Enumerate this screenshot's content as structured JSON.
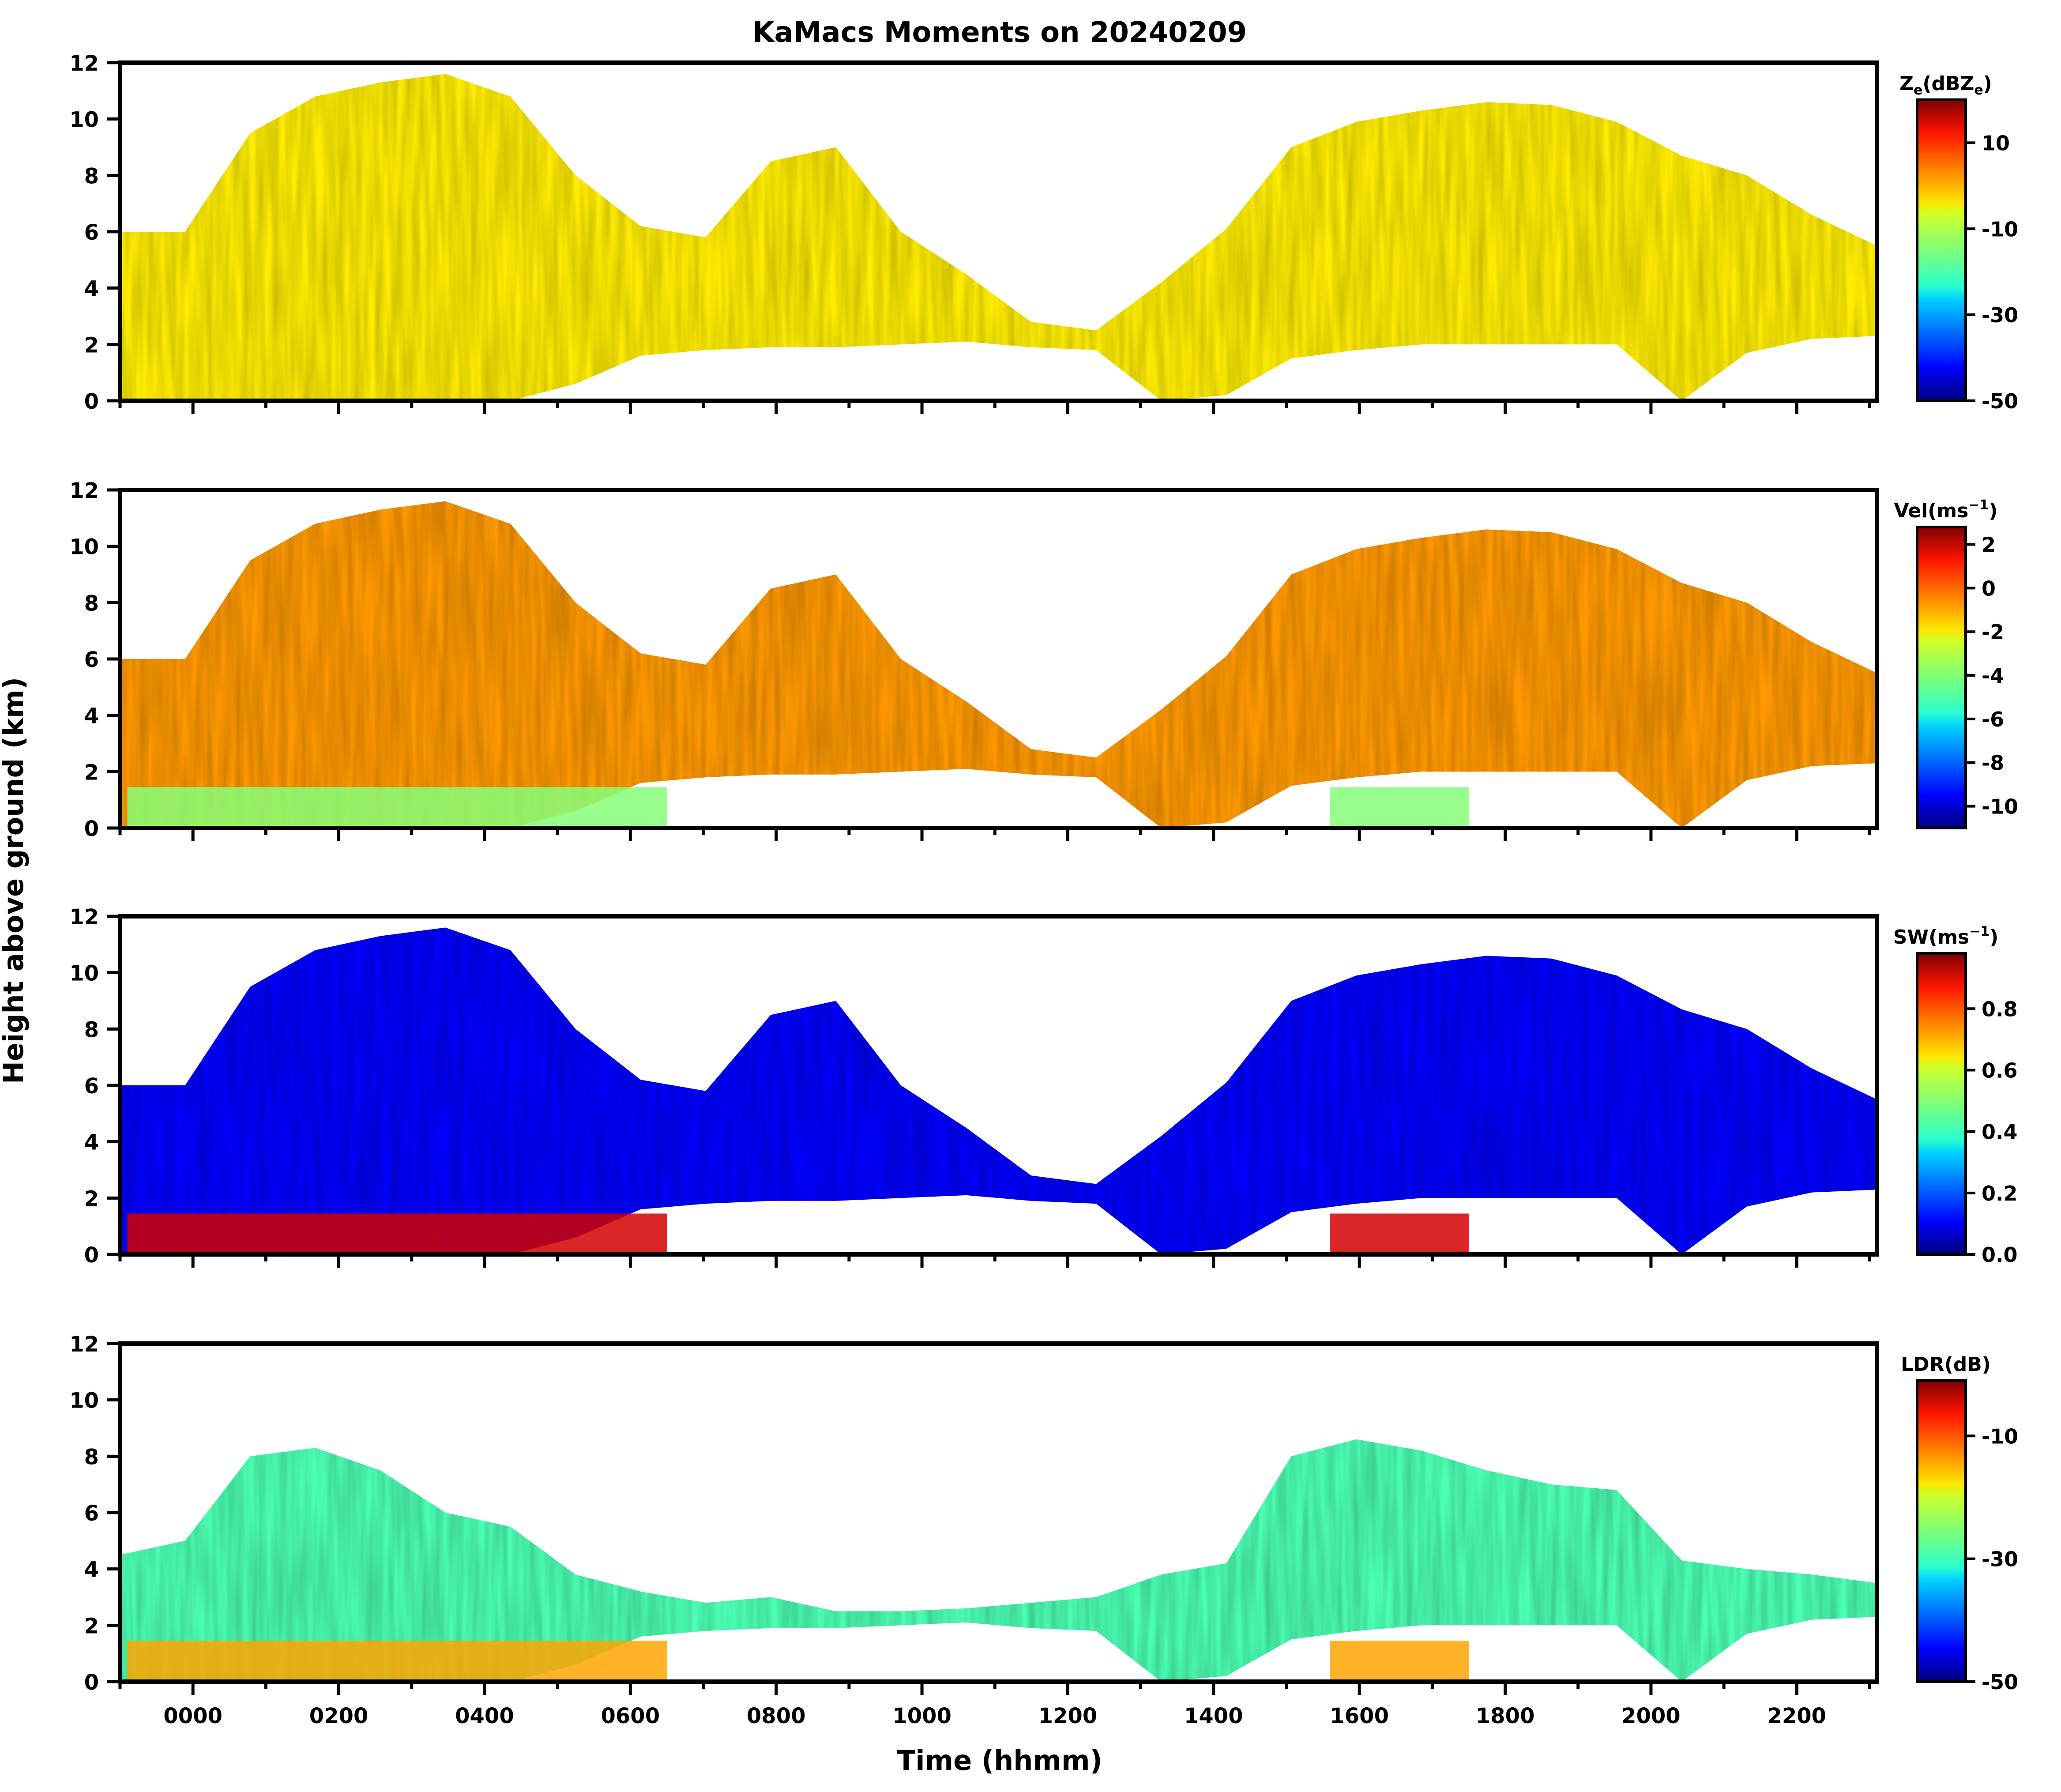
{
  "chart_data": {
    "type": "heatmap",
    "title": "KaMacs Moments on 20240209",
    "xlabel": "Time (hhmm)",
    "ylabel": "Height above ground (km)",
    "x_ticks": [
      "0000",
      "0200",
      "0400",
      "0600",
      "0800",
      "1000",
      "1200",
      "1400",
      "1600",
      "1800",
      "2000",
      "2200"
    ],
    "x_tick_hours": [
      0,
      2,
      4,
      6,
      8,
      10,
      12,
      14,
      16,
      18,
      20,
      22
    ],
    "xlim_hours": [
      -1.0,
      23.1
    ],
    "y_ticks": [
      "0",
      "2",
      "4",
      "6",
      "8",
      "10",
      "12"
    ],
    "ylim": [
      0,
      12
    ],
    "panels": [
      {
        "name": "reflectivity",
        "colorbar_label": "Ze(dBZe)",
        "label_main": "Z",
        "label_sub": "e",
        "label_mid": "(dBZ",
        "label_sub2": "e",
        "label_end": ")",
        "colorbar_ticks": [
          "10",
          "-10",
          "-30",
          "-50"
        ],
        "colorbar_values": [
          10,
          -10,
          -30,
          -50
        ],
        "vmin": -50,
        "vmax": 20,
        "dominant_value": -5,
        "cloud": "deep",
        "melt_band": "",
        "echo_top_km": [
          6.0,
          6.0,
          9.5,
          10.8,
          11.3,
          11.6,
          10.8,
          8.0,
          6.2,
          5.8,
          8.5,
          9.0,
          6.0,
          4.5,
          2.8,
          2.5,
          4.2,
          6.1,
          9.0,
          9.9,
          10.3,
          10.6,
          10.5,
          9.9,
          8.7,
          8.0,
          6.6,
          5.5
        ],
        "echo_base_km": [
          0.0,
          0.0,
          0.0,
          0.0,
          0.0,
          0.0,
          0.0,
          0.6,
          1.6,
          1.8,
          1.9,
          1.9,
          2.0,
          2.1,
          1.9,
          1.8,
          0.0,
          0.2,
          1.5,
          1.8,
          2.0,
          2.0,
          2.0,
          2.0,
          0.0,
          1.7,
          2.2,
          2.3
        ]
      },
      {
        "name": "velocity",
        "colorbar_label": "Vel(ms-1)",
        "label_main": "Vel(ms",
        "label_sub": "",
        "label_mid": "",
        "label_sup": "−1",
        "label_end": ")",
        "colorbar_ticks": [
          "2",
          "0",
          "-2",
          "-4",
          "-6",
          "-8",
          "-10"
        ],
        "colorbar_values": [
          2,
          0,
          -2,
          -4,
          -6,
          -8,
          -10
        ],
        "vmin": -11,
        "vmax": 2.8,
        "dominant_value": -1.0,
        "cloud": "deep",
        "melt_band": "-4",
        "echo_top_km": [
          6.0,
          6.0,
          9.5,
          10.8,
          11.3,
          11.6,
          10.8,
          8.0,
          6.2,
          5.8,
          8.5,
          9.0,
          6.0,
          4.5,
          2.8,
          2.5,
          4.2,
          6.1,
          9.0,
          9.9,
          10.3,
          10.6,
          10.5,
          9.9,
          8.7,
          8.0,
          6.6,
          5.5
        ],
        "echo_base_km": [
          0.0,
          0.0,
          0.0,
          0.0,
          0.0,
          0.0,
          0.0,
          0.6,
          1.6,
          1.8,
          1.9,
          1.9,
          2.0,
          2.1,
          1.9,
          1.8,
          0.0,
          0.2,
          1.5,
          1.8,
          2.0,
          2.0,
          2.0,
          2.0,
          0.0,
          1.7,
          2.2,
          2.3
        ]
      },
      {
        "name": "spectrum-width",
        "colorbar_label": "SW(ms-1)",
        "label_main": "SW(ms",
        "label_sub": "",
        "label_mid": "",
        "label_sup": "−1",
        "label_end": ")",
        "colorbar_ticks": [
          "0.8",
          "0.6",
          "0.4",
          "0.2",
          "0.0"
        ],
        "colorbar_values": [
          0.8,
          0.6,
          0.4,
          0.2,
          0.0
        ],
        "vmin": 0.0,
        "vmax": 0.98,
        "dominant_value": 0.12,
        "cloud": "deep",
        "melt_band": "0.9",
        "echo_top_km": [
          6.0,
          6.0,
          9.5,
          10.8,
          11.3,
          11.6,
          10.8,
          8.0,
          6.2,
          5.8,
          8.5,
          9.0,
          6.0,
          4.5,
          2.8,
          2.5,
          4.2,
          6.1,
          9.0,
          9.9,
          10.3,
          10.6,
          10.5,
          9.9,
          8.7,
          8.0,
          6.6,
          5.5
        ],
        "echo_base_km": [
          0.0,
          0.0,
          0.0,
          0.0,
          0.0,
          0.0,
          0.0,
          0.6,
          1.6,
          1.8,
          1.9,
          1.9,
          2.0,
          2.1,
          1.9,
          1.8,
          0.0,
          0.2,
          1.5,
          1.8,
          2.0,
          2.0,
          2.0,
          2.0,
          0.0,
          1.7,
          2.2,
          2.3
        ]
      },
      {
        "name": "ldr",
        "colorbar_label": "LDR(dB)",
        "label_main": "LDR(dB)",
        "label_sub": "",
        "label_mid": "",
        "label_end": "",
        "colorbar_ticks": [
          "-10",
          "-30",
          "-50"
        ],
        "colorbar_values": [
          -10,
          -30,
          -50
        ],
        "vmin": -50,
        "vmax": -1,
        "dominant_value": -28,
        "cloud": "shallow",
        "melt_band": "-15",
        "echo_top_km": [
          4.5,
          5.0,
          8.0,
          8.3,
          7.5,
          6.0,
          5.5,
          3.8,
          3.2,
          2.8,
          3.0,
          2.5,
          2.5,
          2.6,
          2.8,
          3.0,
          3.8,
          4.2,
          8.0,
          8.6,
          8.2,
          7.5,
          7.0,
          6.8,
          4.3,
          4.0,
          3.8,
          3.5
        ],
        "echo_base_km": [
          0.0,
          0.0,
          0.0,
          0.0,
          0.0,
          0.0,
          0.0,
          0.6,
          1.6,
          1.8,
          1.9,
          1.9,
          2.0,
          2.1,
          1.9,
          1.8,
          0.0,
          0.2,
          1.5,
          1.8,
          2.0,
          2.0,
          2.0,
          2.0,
          0.0,
          1.7,
          2.2,
          2.3
        ]
      }
    ]
  }
}
